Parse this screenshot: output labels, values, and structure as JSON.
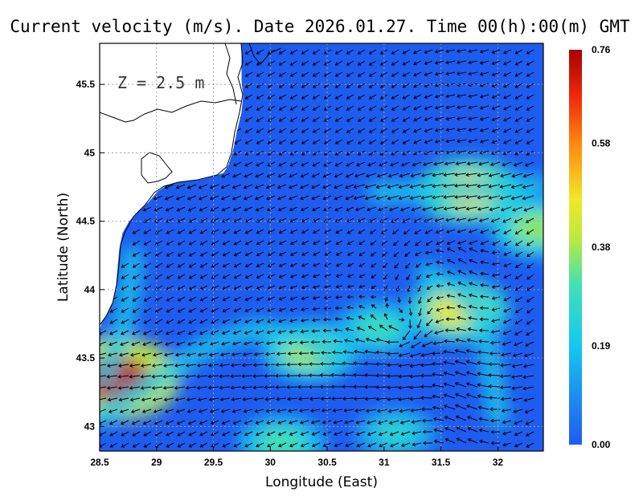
{
  "title": "Current velocity (m/s). Date 2026.01.27. Time 00(h):00(m) GMT",
  "depth_label": "Z = 2.5 m",
  "colors": {
    "low": "#1e5cf0",
    "mid_low": "#15c8ee",
    "mid": "#c8e838",
    "mid_high": "#ff8a10",
    "high": "#a80000",
    "land": "#ffffff",
    "grid": "#a0a0a0"
  },
  "chart_data": {
    "type": "heatmap",
    "title": "Current velocity (m/s). Date 2026.01.27. Time 00(h):00(m) GMT",
    "xlabel": "Longitude (East)",
    "ylabel": "Latitude (North)",
    "xlim": [
      28.5,
      32.4
    ],
    "ylim": [
      42.82,
      45.8
    ],
    "x_ticks": [
      "28.5",
      "29",
      "29.5",
      "30",
      "30.5",
      "31",
      "31.5",
      "32"
    ],
    "x_tick_values": [
      28.5,
      29,
      29.5,
      30,
      30.5,
      31,
      31.5,
      32
    ],
    "y_ticks": [
      "43",
      "43.5",
      "44",
      "44.5",
      "45",
      "45.5"
    ],
    "y_tick_values": [
      43,
      43.5,
      44,
      44.5,
      45,
      45.5
    ],
    "grid": true,
    "colorbar": {
      "labels": [
        "0.76",
        "0.58",
        "0.38",
        "0.19",
        "0.00"
      ],
      "values": [
        0.76,
        0.58,
        0.38,
        0.19,
        0.0
      ],
      "placement": "right"
    },
    "hotspots": [
      {
        "lon": 28.62,
        "lat": 43.35,
        "speed": 0.74
      },
      {
        "lon": 31.65,
        "lat": 43.85,
        "speed": 0.45
      },
      {
        "lon": 31.75,
        "lat": 44.72,
        "speed": 0.48
      },
      {
        "lon": 30.35,
        "lat": 43.55,
        "speed": 0.38
      },
      {
        "lon": 32.35,
        "lat": 44.45,
        "speed": 0.36
      },
      {
        "lon": 30.95,
        "lat": 43.72,
        "speed": 0.28
      },
      {
        "lon": 31.1,
        "lat": 42.95,
        "speed": 0.24
      },
      {
        "lon": 30.1,
        "lat": 42.88,
        "speed": 0.3
      }
    ]
  }
}
